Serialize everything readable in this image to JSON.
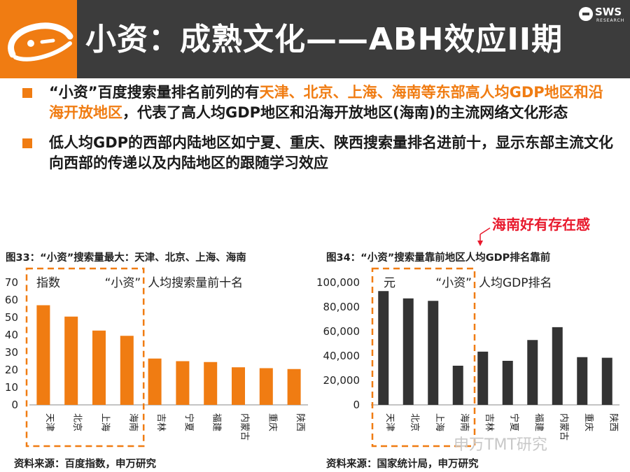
{
  "header": {
    "title": "小资：成熟文化——ABH效应II期",
    "brand_text": "SWS",
    "brand_sub": "RESEARCH",
    "accent_color": "#f07c12",
    "bg_color": "#3c3c3c"
  },
  "bullets": [
    {
      "parts": [
        {
          "text": "“小资”百度搜索量排名前列的有",
          "hl": false
        },
        {
          "text": "天津、北京、上海、海南等东部高人均GDP地区和沿海开放地区",
          "hl": true
        },
        {
          "text": "，代表了高人均GDP地区和沿海开放地区(海南)的主流网络文化形态",
          "hl": false
        }
      ]
    },
    {
      "parts": [
        {
          "text": "低人均GDP的西部内陆地区如宁夏、重庆、陕西搜索量排名进前十，显示东部主流文化向西部的传递以及内陆地区的跟随学习效应",
          "hl": false
        }
      ]
    }
  ],
  "annotation": "海南好有存在感",
  "watermark": "申万TMT研究",
  "chart_data": [
    {
      "type": "bar",
      "figure_title": "图33：“小资”搜索量最大：天津、北京、上海、海南",
      "inner_title": "人均搜索量前十名",
      "unit_label": "指数",
      "box_label": "“小资”",
      "categories": [
        "天津",
        "北京",
        "上海",
        "海南",
        "吉林",
        "宁夏",
        "福建",
        "内蒙古",
        "重庆",
        "陕西"
      ],
      "values": [
        57,
        50.5,
        42.5,
        39.5,
        26.5,
        25,
        24.5,
        21.5,
        21,
        20.5
      ],
      "ylim": [
        0,
        70
      ],
      "yticks": [
        0,
        10,
        20,
        30,
        40,
        50,
        60,
        70
      ],
      "ytick_labels": [
        "0",
        "10",
        "20",
        "30",
        "40",
        "50",
        "60",
        "70"
      ],
      "highlight_count": 4,
      "color": "#f07c12",
      "source": "资料来源：百度指数，申万研究"
    },
    {
      "type": "bar",
      "figure_title": "图34：“小资”搜索量靠前地区人均GDP排名靠前",
      "inner_title": "人均GDP排名",
      "unit_label": "元",
      "box_label": "“小资”",
      "categories": [
        "天津",
        "北京",
        "上海",
        "海南",
        "吉林",
        "宁夏",
        "福建",
        "内蒙古",
        "重庆",
        "陕西"
      ],
      "values": [
        93000,
        87000,
        85000,
        32000,
        43500,
        36000,
        53000,
        63500,
        39000,
        38500
      ],
      "ylim": [
        0,
        100000
      ],
      "yticks": [
        0,
        20000,
        40000,
        60000,
        80000,
        100000
      ],
      "ytick_labels": [
        "0",
        "20,000",
        "40,000",
        "60,000",
        "80,000",
        "100,000"
      ],
      "highlight_count": 4,
      "color": "#333333",
      "source": "资料来源：国家统计局，申万研究"
    }
  ]
}
